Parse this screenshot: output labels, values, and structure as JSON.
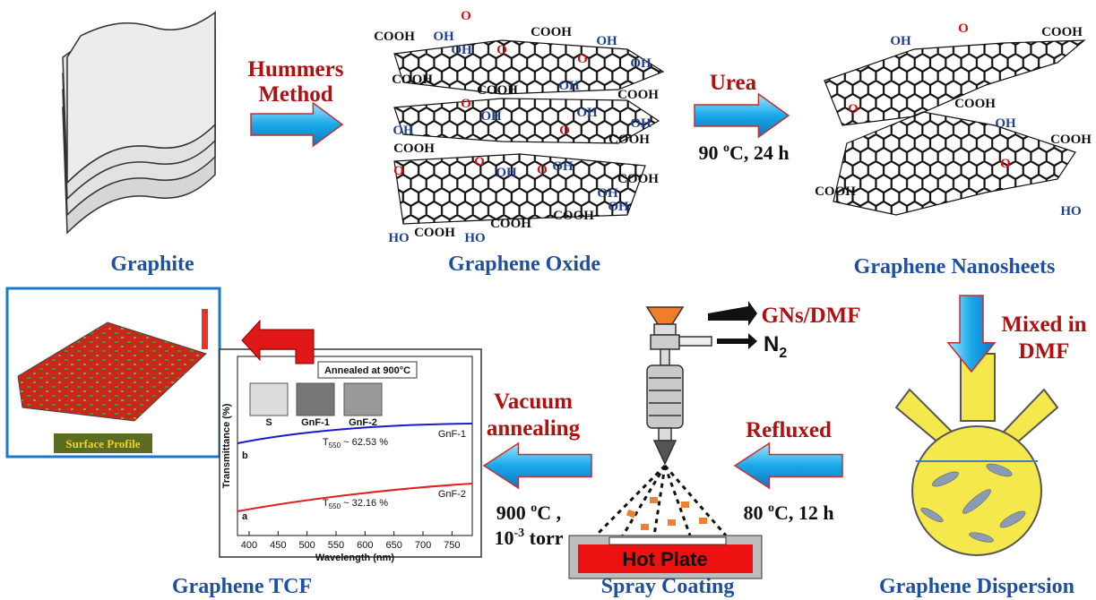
{
  "graphite": {
    "label": "Graphite"
  },
  "hummers": {
    "lines": [
      "Hummers",
      "Method"
    ]
  },
  "graphene_oxide": {
    "label": "Graphene Oxide",
    "groups": [
      "COOH",
      "OH",
      "O",
      "OH",
      "O",
      "COOH",
      "OH",
      "O",
      "OH",
      "COOH",
      "COOH",
      "OH",
      "COOH",
      "OH",
      "O",
      "OH",
      "OH",
      "O",
      "OH",
      "COOH",
      "COOH",
      "O",
      "O",
      "OH",
      "O",
      "OH",
      "COOH",
      "OH",
      "HO",
      "COOH",
      "HO",
      "COOH",
      "COOH",
      "OH"
    ]
  },
  "urea": {
    "label": "Urea",
    "condition": {
      "pre": "90 ",
      "sup": "o",
      "post": "C, 24 h"
    }
  },
  "nanosheets": {
    "label": "Graphene Nanosheets",
    "groups": [
      "OH",
      "O",
      "COOH",
      "COOH",
      "OH",
      "O",
      "COOH",
      "O",
      "COOH",
      "HO"
    ]
  },
  "mixing": {
    "lines": [
      "Mixed in",
      "DMF"
    ]
  },
  "dispersion": {
    "label": "Graphene Dispersion"
  },
  "reflux": {
    "label": "Refluxed",
    "condition": {
      "pre": "80 ",
      "sup": "o",
      "post": "C, 12 h"
    }
  },
  "spray": {
    "label": "Spray Coating",
    "hot_plate": "Hot Plate",
    "solution": "GNs/DMF",
    "gas": "N",
    "gas_sub": "2"
  },
  "annealing": {
    "lines": [
      "Vacuum",
      "annealing"
    ],
    "condition": {
      "pre": "900 ",
      "sup": "o",
      "post": "C ,"
    },
    "pressure": {
      "base": "10",
      "sup": "-3",
      "post": " torr"
    }
  },
  "tcf": {
    "label": "Graphene TCF",
    "surface_profile": "Surface Profile",
    "spectrum": {
      "ylabel": "Transmittance (%)",
      "xlabel": "Wavelength (nm)",
      "xlim": [
        380,
        785
      ],
      "xticks": [
        400,
        450,
        500,
        550,
        600,
        650,
        700,
        750
      ],
      "inset_title": "Annealed at 900°C",
      "samples": [
        "S",
        "GnF-1",
        "GnF-2"
      ],
      "curves": [
        {
          "name": "GnF-1",
          "letter": "b",
          "t": "T",
          "t_sub": "550",
          "t_post": " ~ 62.53 %"
        },
        {
          "name": "GnF-2",
          "letter": "a",
          "t": "T",
          "t_sub": "550",
          "t_post": " ~ 32.16 %"
        }
      ]
    }
  }
}
